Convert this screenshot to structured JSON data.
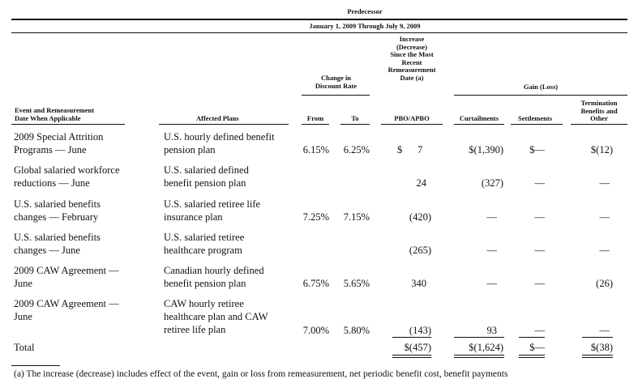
{
  "header": {
    "period_group": "Predecessor",
    "period": "January 1, 2009 Through July 9, 2009",
    "change_group": "Change in Discount Rate",
    "change_group_line1": "Change in",
    "change_group_line2": "Discount Rate",
    "increase_group_lines": [
      "Increase",
      "(Decrease)",
      "Since the Most",
      "Recent",
      "Remeasurement",
      "Date (a)"
    ],
    "gain_group": "Gain (Loss)",
    "col_event_lines": [
      "Event and Remeasurement",
      "Date When Applicable"
    ],
    "col_plans": "Affected Plans",
    "col_from": "From",
    "col_to": "To",
    "col_pbo": "PBO/APBO",
    "col_curtailments": "Curtailments",
    "col_settlements": "Settlements",
    "col_termination_lines": [
      "Termination",
      "Benefits and",
      "Other"
    ]
  },
  "rows": [
    {
      "event": [
        "2009 Special Attrition",
        "Programs — June"
      ],
      "plans": [
        "U.S. hourly defined benefit",
        "pension plan"
      ],
      "from": "6.15%",
      "to": "6.25%",
      "pbo": "$      7",
      "curtail": "$(1,390)",
      "settle": "$—",
      "term": "$(12)"
    },
    {
      "event": [
        "Global salaried workforce",
        "reductions — June"
      ],
      "plans": [
        "U.S. salaried defined",
        "benefit pension plan"
      ],
      "from": "",
      "to": "",
      "pbo": "24",
      "curtail": "(327)",
      "settle": "—",
      "term": "—"
    },
    {
      "event": [
        "U.S. salaried benefits",
        "changes — February"
      ],
      "plans": [
        "U.S. salaried retiree life",
        "insurance plan"
      ],
      "from": "7.25%",
      "to": "7.15%",
      "pbo": "(420)",
      "curtail": "—",
      "settle": "—",
      "term": "—"
    },
    {
      "event": [
        "U.S. salaried benefits",
        "changes — June"
      ],
      "plans": [
        "U.S. salaried retiree",
        "healthcare program"
      ],
      "from": "",
      "to": "",
      "pbo": "(265)",
      "curtail": "—",
      "settle": "—",
      "term": "—"
    },
    {
      "event": [
        "2009 CAW Agreement —",
        "June"
      ],
      "plans": [
        "Canadian hourly defined",
        "benefit pension plan"
      ],
      "from": "6.75%",
      "to": "5.65%",
      "pbo": "340",
      "curtail": "—",
      "settle": "—",
      "term": "(26)"
    },
    {
      "event": [
        "2009 CAW Agreement —",
        "June"
      ],
      "plans": [
        "CAW hourly retiree",
        "healthcare plan and CAW",
        "retiree life plan"
      ],
      "from": "7.00%",
      "to": "5.80%",
      "pbo": "(143)",
      "curtail": "93",
      "settle": "—",
      "term": "—"
    }
  ],
  "total": {
    "label": "Total",
    "pbo": "$(457)",
    "curtail": "$(1,624)",
    "settle": "$—",
    "term": "$(38)"
  },
  "footnote": "(a)   The increase (decrease) includes effect of the event, gain or loss from remeasurement, net periodic benefit cost, benefit payments"
}
